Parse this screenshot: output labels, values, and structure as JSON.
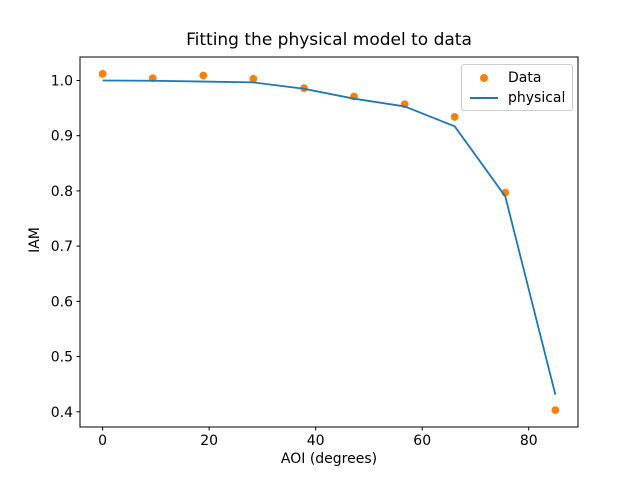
{
  "figure": {
    "background": "#ffffff",
    "text_color": "#000000"
  },
  "chart_data": {
    "type": "scatter",
    "title": "Fitting the physical model to data",
    "xlabel": "AOI (degrees)",
    "ylabel": "IAM",
    "xlim": [
      -4.25,
      89.25
    ],
    "ylim": [
      0.3725,
      1.0425
    ],
    "grid": false,
    "xticks": {
      "values": [
        0,
        20,
        40,
        60,
        80
      ],
      "labels": [
        "0",
        "20",
        "40",
        "60",
        "80"
      ]
    },
    "yticks": {
      "values": [
        0.4,
        0.5,
        0.6,
        0.7,
        0.8,
        0.9,
        1.0
      ],
      "labels": [
        "0.4",
        "0.5",
        "0.6",
        "0.7",
        "0.8",
        "0.9",
        "1.0"
      ]
    },
    "x": [
      0,
      9.4,
      18.9,
      28.3,
      37.8,
      47.2,
      56.7,
      66.1,
      75.6,
      85
    ],
    "series": [
      {
        "name": "Data",
        "type": "scatter",
        "color": "#ff7f0e",
        "values": [
          1.012,
          1.004,
          1.009,
          1.003,
          0.986,
          0.971,
          0.957,
          0.934,
          0.797,
          0.403
        ]
      },
      {
        "name": "physical",
        "type": "line",
        "color": "#1f77b4",
        "values": [
          1.0,
          0.9995,
          0.998,
          0.9965,
          0.985,
          0.967,
          0.953,
          0.917,
          0.79,
          0.431
        ]
      }
    ],
    "legend": {
      "position": "upper right",
      "entries": [
        {
          "label": "Data",
          "marker": "dot",
          "color": "#ff7f0e"
        },
        {
          "label": "physical",
          "marker": "line",
          "color": "#1f77b4"
        }
      ]
    }
  }
}
